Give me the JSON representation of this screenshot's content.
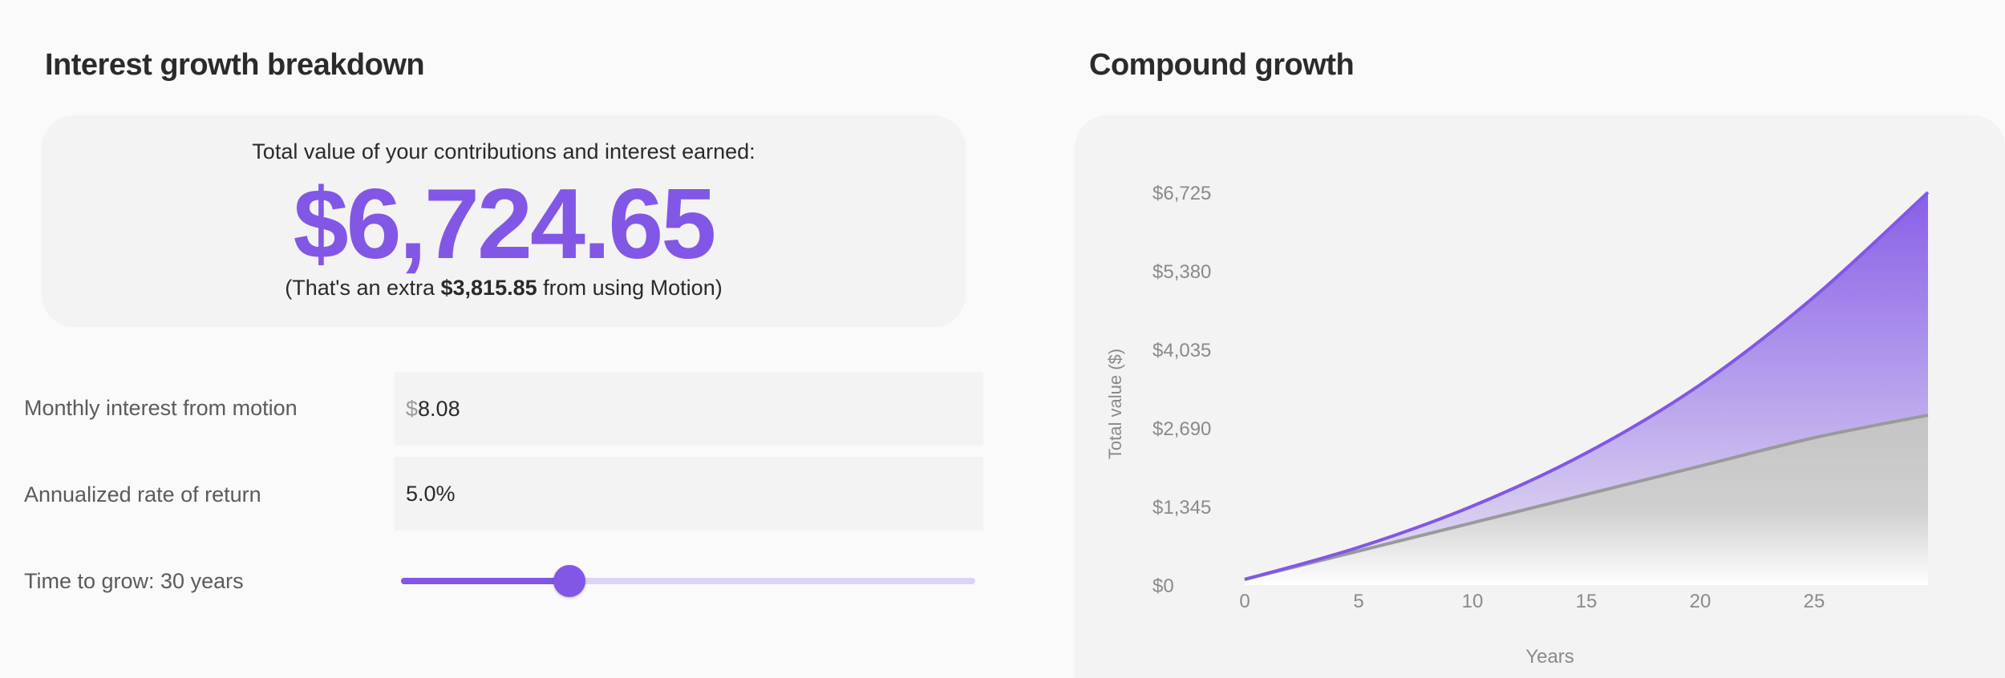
{
  "breakdown": {
    "title": "Interest growth breakdown",
    "caption": "Total value of your contributions and interest earned:",
    "total": "$6,724.65",
    "extra_prefix": "(That's an extra ",
    "extra_amount": "$3,815.85",
    "extra_suffix": " from using Motion)",
    "monthly_label": "Monthly interest from motion",
    "monthly_prefix": "$",
    "monthly_value": "8.08",
    "rate_label": "Annualized rate of return",
    "rate_value": "5.0%",
    "time_label": "Time to grow: 30 years",
    "time_years": 30,
    "time_min": 1,
    "time_max": 100
  },
  "colors": {
    "accent": "#8257e6",
    "track": "#ddd3f5",
    "contributions": "#9a9a9a"
  },
  "chart": {
    "title": "Compound growth"
  },
  "chart_data": {
    "type": "area",
    "ylabel": "Total value ($)",
    "xlabel": "Years",
    "x_ticks": [
      0,
      5,
      10,
      15,
      20,
      25
    ],
    "y_ticks": [
      "$0",
      "$1,345",
      "$2,690",
      "$4,035",
      "$5,380",
      "$6,725"
    ],
    "y_tick_values": [
      0,
      1345,
      2690,
      4035,
      5380,
      6725
    ],
    "xlim": [
      0,
      30
    ],
    "ylim": [
      0,
      6725
    ],
    "grid": false,
    "series": [
      {
        "color": "#8257e6",
        "x": [
          0,
          5,
          10,
          15,
          20,
          25,
          30
        ],
        "y": [
          97,
          646,
          1352,
          2262,
          3431,
          4935,
          6725
        ]
      },
      {
        "color": "#9a9a9a",
        "x": [
          0,
          5,
          10,
          15,
          20,
          25,
          30
        ],
        "y": [
          97,
          582,
          1067,
          1552,
          2037,
          2522,
          2909
        ]
      }
    ]
  }
}
